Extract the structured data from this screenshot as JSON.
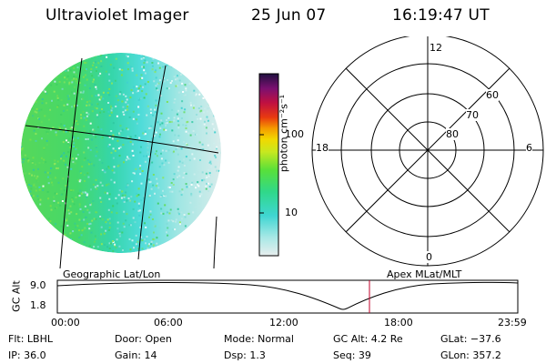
{
  "header": {
    "title": "Ultraviolet Imager",
    "date": "25 Jun 07",
    "time": "16:19:47 UT"
  },
  "colorbar": {
    "unit_label": "photon cm⁻²s⁻¹",
    "ticks": [
      "100",
      "10"
    ]
  },
  "polar_plot": {
    "mlt_labels": [
      "12",
      "18",
      "6",
      "0"
    ],
    "lat_labels": [
      "60",
      "70",
      "80"
    ]
  },
  "panel_labels": {
    "left": "Geographic Lat/Lon",
    "right": "Apex MLat/MLT"
  },
  "altitude_plot": {
    "y_label": "GC Alt",
    "y_max": "9.0",
    "y_min": "1.8",
    "x_ticks": [
      "00:00",
      "06:00",
      "12:00",
      "18:00",
      "23:59"
    ],
    "line_color": "#000000",
    "marker_color": "#c0002a"
  },
  "info": {
    "flt": "Flt: LBHL",
    "ip": "IP: 36.0",
    "door": "Door: Open",
    "gain": "Gain: 14",
    "mode": "Mode: Normal",
    "dsp": "Dsp:     1.3",
    "gcalt": "GC Alt: 4.2 Re",
    "seq": "Seq: 39",
    "glat": "GLat: −37.6",
    "glon": "GLon: 357.2"
  }
}
